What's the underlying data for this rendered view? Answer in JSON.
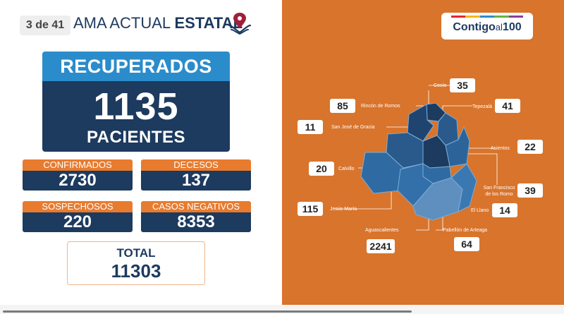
{
  "header": {
    "slide_counter": "3 de 41",
    "title_light": "AMA ACTUAL",
    "title_bold": "ESTATAL"
  },
  "recovered": {
    "label": "RECUPERADOS",
    "value": "1135",
    "unit": "PACIENTES"
  },
  "stats": [
    {
      "label": "CONFIRMADOS",
      "value": "2730"
    },
    {
      "label": "DECESOS",
      "value": "137"
    },
    {
      "label": "SOSPECHOSOS",
      "value": "220"
    },
    {
      "label": "CASOS NEGATIVOS",
      "value": "8353"
    }
  ],
  "total": {
    "label": "TOTAL",
    "value": "11303"
  },
  "logo": {
    "text": "Contigo",
    "suffix": "al",
    "number": "100",
    "stripe_colors": [
      "#e2262d",
      "#f6b519",
      "#2b8ccb",
      "#67b346",
      "#8e3e97"
    ]
  },
  "municipalities": {
    "cosio": {
      "name": "Cosío",
      "value": "35"
    },
    "rincon": {
      "name": "Rincón de Romos",
      "value": "85"
    },
    "tepezala": {
      "name": "Tepezalá",
      "value": "41"
    },
    "sanjose": {
      "name": "San José de Gracia",
      "value": "11"
    },
    "asientos": {
      "name": "Asientos",
      "value": "22"
    },
    "calvillo": {
      "name": "Calvillo",
      "value": "20"
    },
    "sanfrancisco": {
      "name": "San Francisco de los Romo",
      "value": "39"
    },
    "jesusmaria": {
      "name": "Jesús María",
      "value": "115"
    },
    "elllano": {
      "name": "El Llano",
      "value": "14"
    },
    "aguascalientes": {
      "name": "Aguascalientes",
      "value": "2241"
    },
    "pabellon": {
      "name": "Pabellón de Arteaga",
      "value": "64"
    }
  },
  "colors": {
    "navy": "#1d3a5f",
    "blue": "#2b8ccb",
    "orange": "#e87b2e",
    "panel_orange": "#d8742c"
  }
}
